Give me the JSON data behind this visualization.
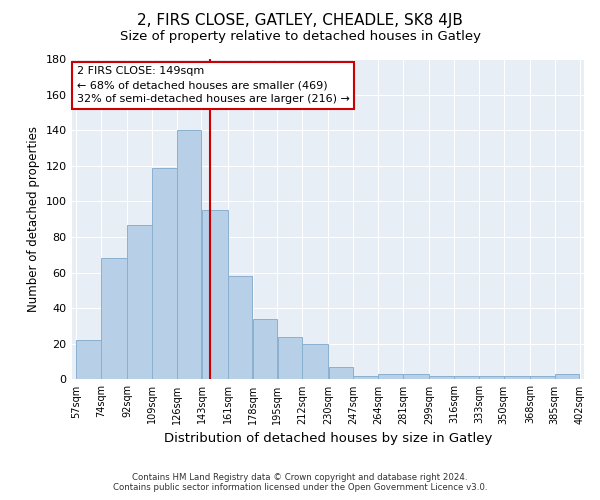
{
  "title": "2, FIRS CLOSE, GATLEY, CHEADLE, SK8 4JB",
  "subtitle": "Size of property relative to detached houses in Gatley",
  "xlabel": "Distribution of detached houses by size in Gatley",
  "ylabel": "Number of detached properties",
  "bar_labels": [
    "57sqm",
    "74sqm",
    "92sqm",
    "109sqm",
    "126sqm",
    "143sqm",
    "161sqm",
    "178sqm",
    "195sqm",
    "212sqm",
    "230sqm",
    "247sqm",
    "264sqm",
    "281sqm",
    "299sqm",
    "316sqm",
    "333sqm",
    "350sqm",
    "368sqm",
    "385sqm",
    "402sqm"
  ],
  "bar_values": [
    22,
    68,
    87,
    119,
    140,
    95,
    58,
    34,
    24,
    20,
    7,
    2,
    3,
    3,
    2,
    2,
    2,
    2,
    2,
    3
  ],
  "bin_edges": [
    57,
    74,
    92,
    109,
    126,
    143,
    161,
    178,
    195,
    212,
    230,
    247,
    264,
    281,
    299,
    316,
    333,
    350,
    368,
    385,
    402
  ],
  "bar_color": "#b8cfe8",
  "bar_edgecolor": "#8ab0d0",
  "vline_x": 149,
  "vline_color": "#cc0000",
  "ylim": [
    0,
    180
  ],
  "yticks": [
    0,
    20,
    40,
    60,
    80,
    100,
    120,
    140,
    160,
    180
  ],
  "annotation_title": "2 FIRS CLOSE: 149sqm",
  "annotation_line1": "← 68% of detached houses are smaller (469)",
  "annotation_line2": "32% of semi-detached houses are larger (216) →",
  "annotation_box_facecolor": "#ffffff",
  "annotation_box_edgecolor": "#cc0000",
  "footer_line1": "Contains HM Land Registry data © Crown copyright and database right 2024.",
  "footer_line2": "Contains public sector information licensed under the Open Government Licence v3.0.",
  "plot_bg_color": "#e8eef5",
  "title_fontsize": 11,
  "subtitle_fontsize": 9.5
}
